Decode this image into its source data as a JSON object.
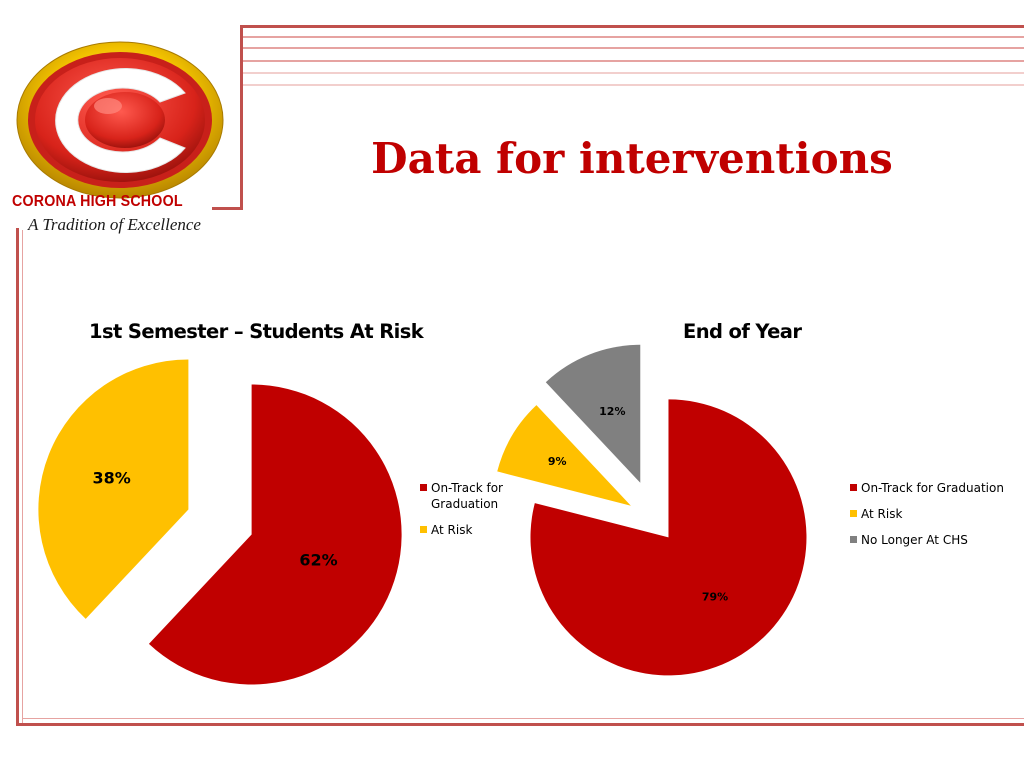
{
  "slide": {
    "title": "Data for interventions"
  },
  "logo": {
    "letter": "C",
    "school_name": "CORONA HIGH SCHOOL",
    "tagline": "A Tradition of Excellence"
  },
  "colors": {
    "accent_red": "#c00000",
    "gold": "#ffc000",
    "gray": "#808080",
    "frame_line": "#c0504d"
  },
  "chart_data": [
    {
      "type": "pie",
      "title": "1st Semester – Students At Risk",
      "categories": [
        "On-Track for Graduation",
        "At Risk"
      ],
      "values": [
        62,
        38
      ],
      "labels": [
        "62%",
        "38%"
      ],
      "colors": [
        "#c00000",
        "#ffc000"
      ],
      "legend_placement": "right"
    },
    {
      "type": "pie",
      "title": "End of Year",
      "categories": [
        "On-Track for Graduation",
        "At Risk",
        "No Longer At CHS"
      ],
      "values": [
        79,
        9,
        12
      ],
      "labels": [
        "79%",
        "9%",
        "12%"
      ],
      "colors": [
        "#c00000",
        "#ffc000",
        "#808080"
      ],
      "legend_placement": "right"
    }
  ]
}
